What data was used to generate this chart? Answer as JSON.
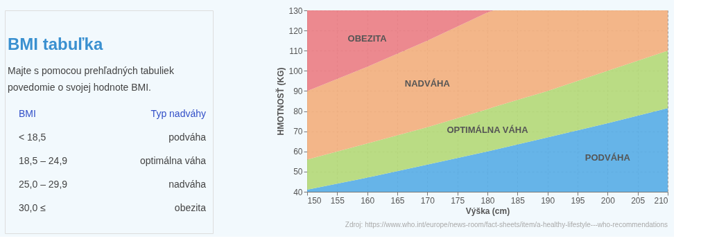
{
  "chart_data": [
    {
      "type": "other",
      "title": "BMI tabuľka",
      "subtitle": "Majte s pomocou prehľadných tabuliek povedomie o svojej hodnote BMI.",
      "annotations": [
        "BMI",
        "Typ nadváhy",
        "< 18,5",
        "podváha",
        "18,5 – 24,9",
        "optimálna váha",
        "25,0 – 29,9",
        "nadváha",
        "30,0 ≤",
        "obezita"
      ]
    },
    {
      "type": "area",
      "xlabel": "Výška (cm)",
      "ylabel": "HMOTNOSŤ (KG)",
      "x": [
        150,
        160,
        170,
        180,
        181,
        190,
        200,
        210
      ],
      "series": [
        {
          "name": "PODVÁHA",
          "color": "#5aaee6",
          "values": [
            41,
            47,
            53.5,
            60,
            60.7,
            67,
            74,
            81.5
          ]
        },
        {
          "name": "OPTIMÁLNA VÁHA",
          "color": "#b5d97a",
          "values": [
            56,
            64,
            72,
            81,
            82,
            90,
            100,
            110
          ]
        },
        {
          "name": "NADVÁHA",
          "color": "#f3b07f",
          "values": [
            90,
            102,
            115,
            129,
            130,
            130,
            130,
            130
          ]
        },
        {
          "name": "OBEZITA",
          "color": "#ec7f86",
          "values": [
            130,
            130,
            130,
            130,
            130,
            130,
            130,
            130
          ]
        }
      ],
      "xlim": [
        150,
        210
      ],
      "xticks": [
        150,
        155,
        160,
        165,
        170,
        175,
        180,
        185,
        190,
        195,
        200,
        205,
        210
      ],
      "ylim": [
        40,
        130
      ],
      "yticks": [
        40,
        50,
        60,
        70,
        80,
        90,
        100,
        110,
        120,
        130
      ],
      "grid": true,
      "annotations": [
        "Zdroj: https://www.who.int/europe/news-room/fact-sheets/item/a-healthy-lifestyle---who-recommendations"
      ]
    }
  ]
}
